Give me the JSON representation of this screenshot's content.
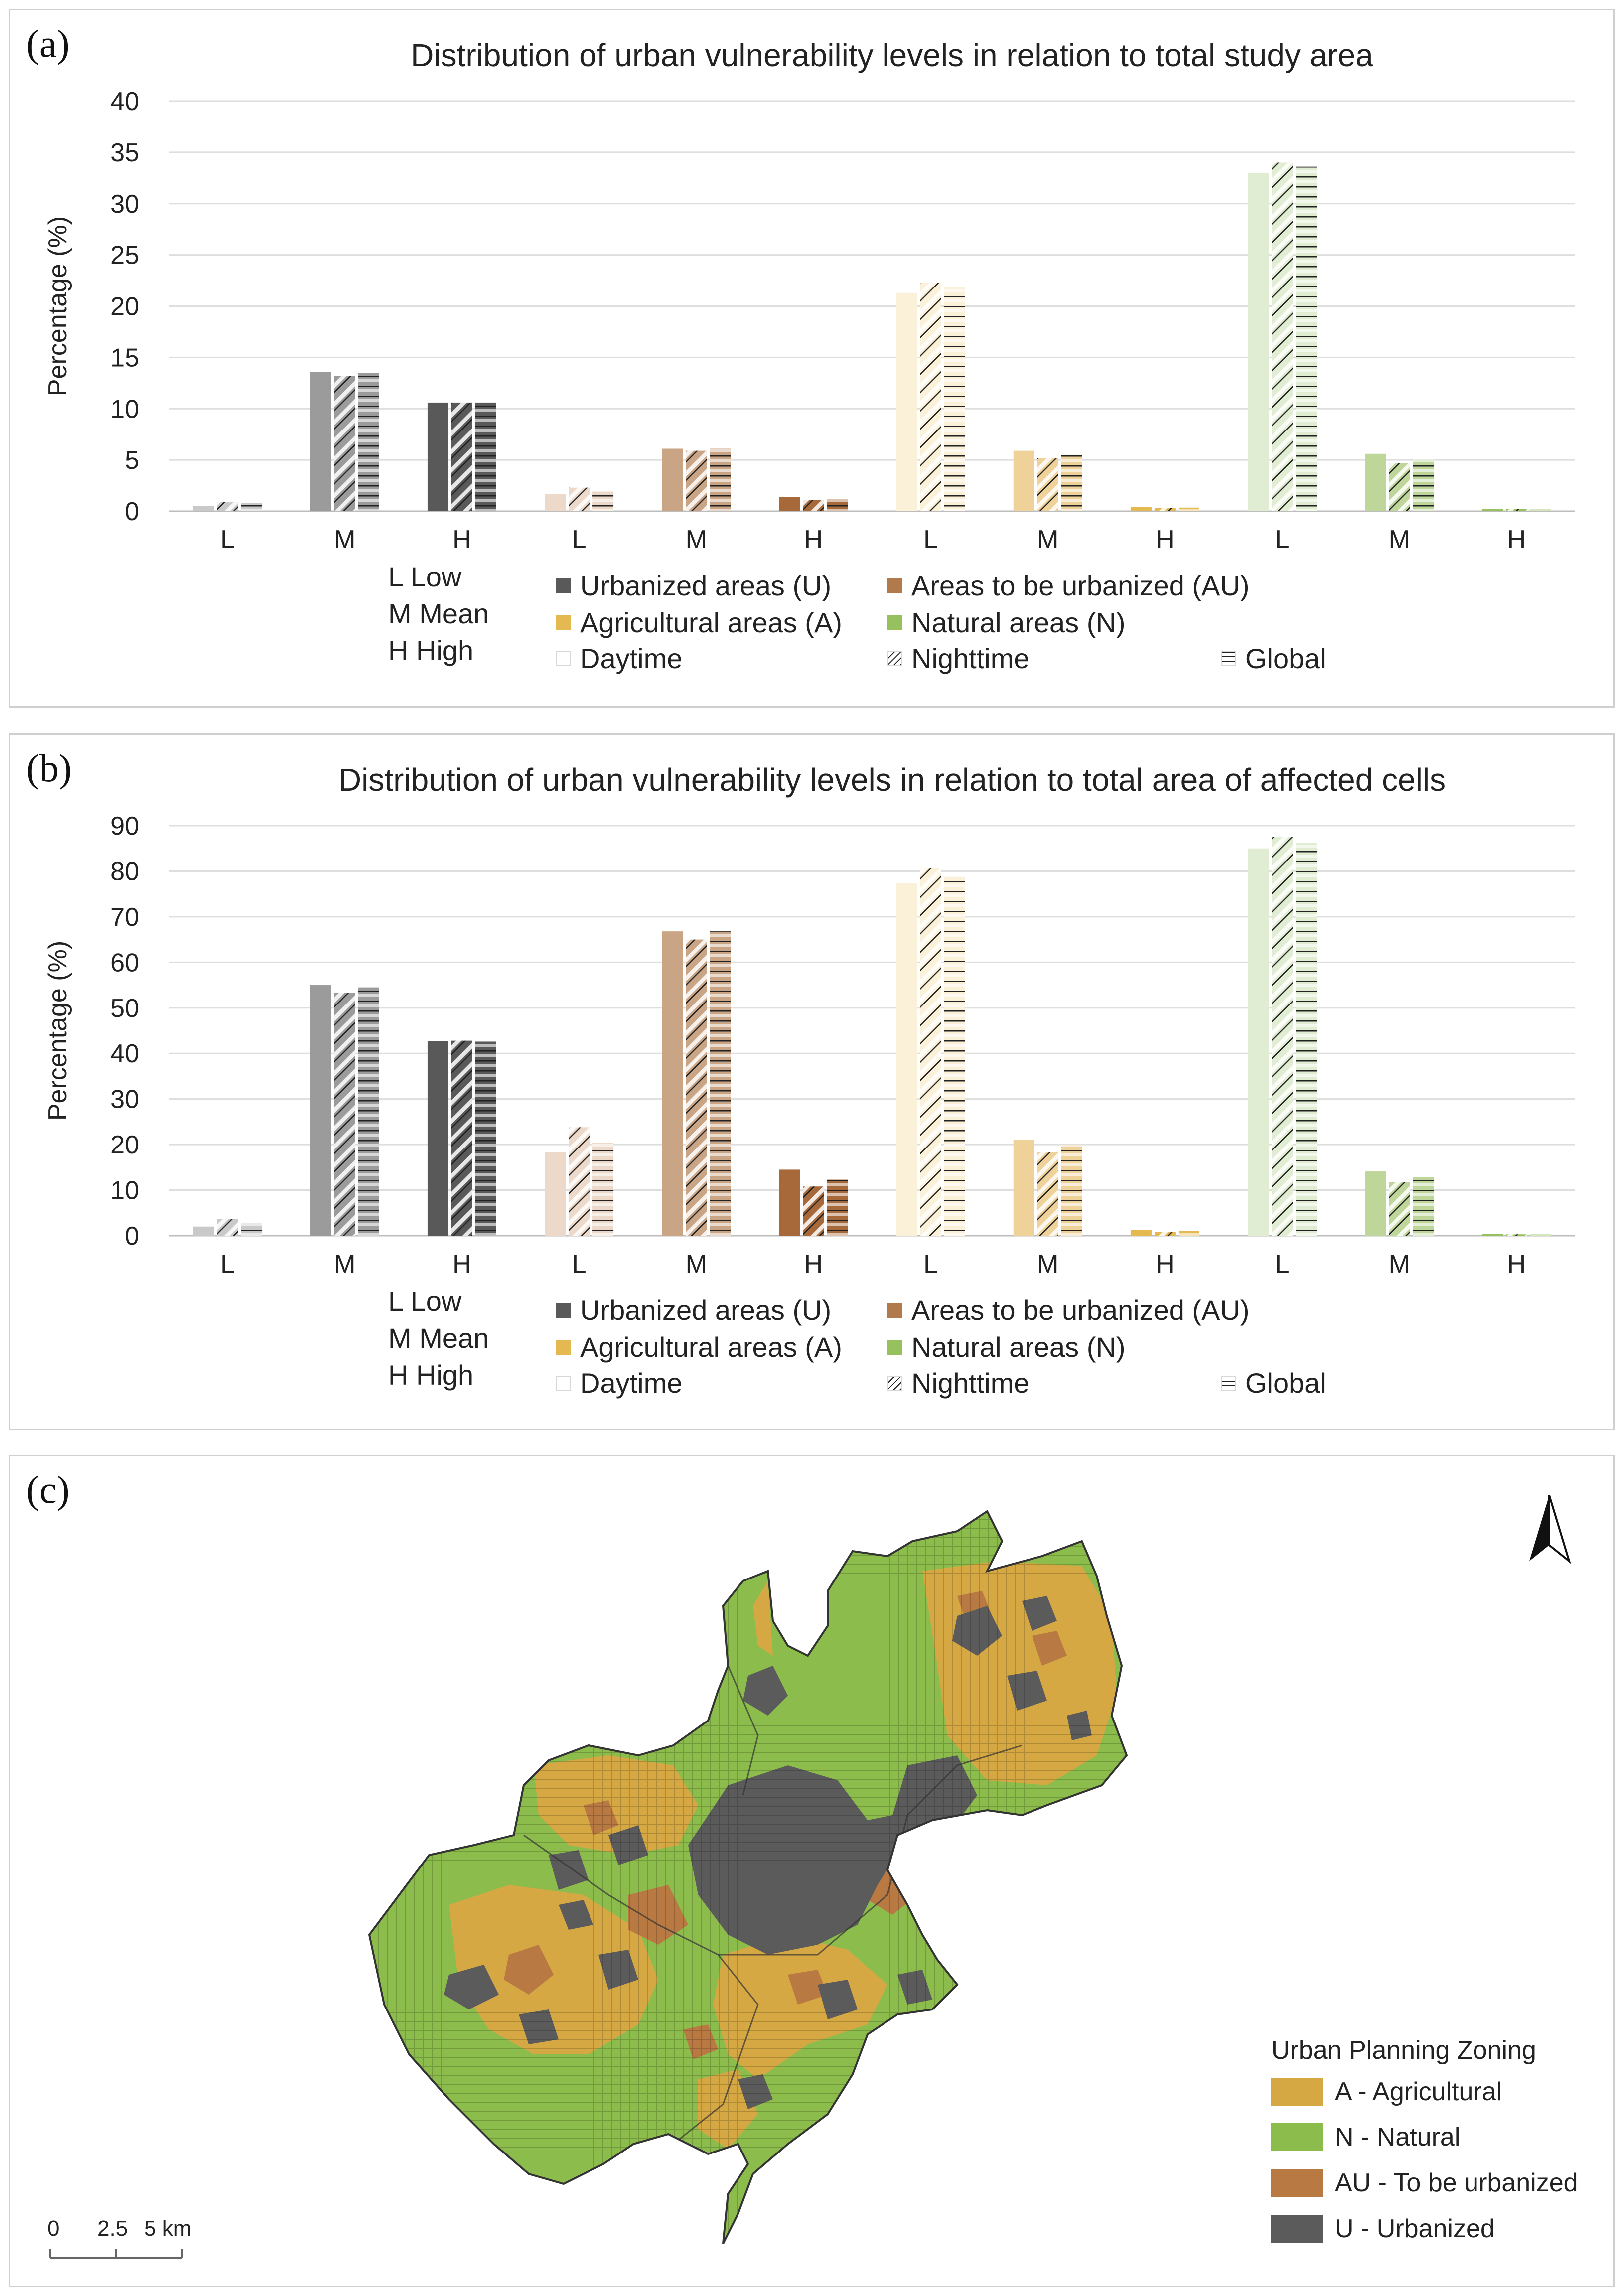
{
  "panels": {
    "a": "(a)",
    "b": "(b)",
    "c": "(c)"
  },
  "legend": {
    "levels": [
      "L Low",
      "M Mean",
      "H High"
    ],
    "zones": [
      "Urbanized areas (U)",
      "Areas to be urbanized (AU)",
      "Agricultural areas (A)",
      "Natural areas (N)"
    ],
    "periods": [
      "Daytime",
      "Nighttime",
      "Global"
    ]
  },
  "colors": {
    "U": [
      "#c9c9c9",
      "#9b9b9b",
      "#595959"
    ],
    "AU": [
      "#ecd9c9",
      "#c9a485",
      "#a8693a"
    ],
    "A": [
      "#fbf1d9",
      "#eed29a",
      "#e5b951"
    ],
    "N": [
      "#e1edd2",
      "#bed69a",
      "#97c15e"
    ],
    "legendU": "#595959",
    "legendAU": "#b07a4c",
    "legendA": "#e5b951",
    "legendN": "#97c15e",
    "mapA": "#d6a843",
    "mapN": "#8cbd4c",
    "mapAU": "#b97942",
    "mapU": "#5b5b5b"
  },
  "chart_data": [
    {
      "type": "bar",
      "title": "Distribution of urban vulnerability levels in relation to total study area",
      "ylabel": "Percentage (%)",
      "xlabel": "",
      "ylim": [
        0,
        40
      ],
      "yticks": [
        "0",
        "5",
        "10",
        "15",
        "20",
        "25",
        "30",
        "35",
        "40"
      ],
      "categories": [
        "L",
        "M",
        "H",
        "L",
        "M",
        "H",
        "L",
        "M",
        "H",
        "L",
        "M",
        "H"
      ],
      "groups": [
        "U",
        "U",
        "U",
        "AU",
        "AU",
        "AU",
        "A",
        "A",
        "A",
        "N",
        "N",
        "N"
      ],
      "series": [
        {
          "name": "Daytime",
          "values": [
            0.5,
            13.6,
            10.6,
            1.7,
            6.1,
            1.4,
            21.3,
            5.9,
            0.4,
            33.0,
            5.6,
            0.2
          ]
        },
        {
          "name": "Nighttime",
          "values": [
            0.9,
            13.2,
            10.6,
            2.3,
            5.9,
            1.1,
            22.3,
            5.2,
            0.3,
            34.0,
            4.7,
            0.2
          ]
        },
        {
          "name": "Global",
          "values": [
            0.8,
            13.5,
            10.6,
            2.0,
            6.1,
            1.2,
            21.9,
            5.5,
            0.35,
            33.6,
            5.1,
            0.2
          ]
        }
      ]
    },
    {
      "type": "bar",
      "title": "Distribution of urban vulnerability levels in relation to total area of affected cells",
      "ylabel": "Percentage (%)",
      "xlabel": "",
      "ylim": [
        0,
        90
      ],
      "yticks": [
        "0",
        "10",
        "20",
        "30",
        "40",
        "50",
        "60",
        "70",
        "80",
        "90"
      ],
      "categories": [
        "L",
        "M",
        "H",
        "L",
        "M",
        "H",
        "L",
        "M",
        "H",
        "L",
        "M",
        "H"
      ],
      "groups": [
        "U",
        "U",
        "U",
        "AU",
        "AU",
        "AU",
        "A",
        "A",
        "A",
        "N",
        "N",
        "N"
      ],
      "series": [
        {
          "name": "Daytime",
          "values": [
            2.0,
            55.0,
            42.7,
            18.3,
            66.8,
            14.5,
            77.3,
            21.0,
            1.3,
            85.0,
            14.1,
            0.4
          ]
        },
        {
          "name": "Nighttime",
          "values": [
            3.7,
            53.3,
            42.8,
            23.8,
            65.0,
            10.8,
            80.7,
            18.3,
            0.8,
            87.5,
            11.8,
            0.3
          ]
        },
        {
          "name": "Global",
          "values": [
            2.8,
            54.5,
            42.6,
            20.4,
            66.8,
            12.3,
            78.8,
            20.0,
            1.0,
            86.2,
            12.9,
            0.4
          ]
        }
      ]
    }
  ],
  "map": {
    "legend_title": "Urban Planning Zoning",
    "legend_items": [
      "A - Agricultural",
      "N - Natural",
      "AU - To be urbanized",
      "U - Urbanized"
    ],
    "scale_labels": [
      "0",
      "2.5",
      "5 km"
    ]
  }
}
